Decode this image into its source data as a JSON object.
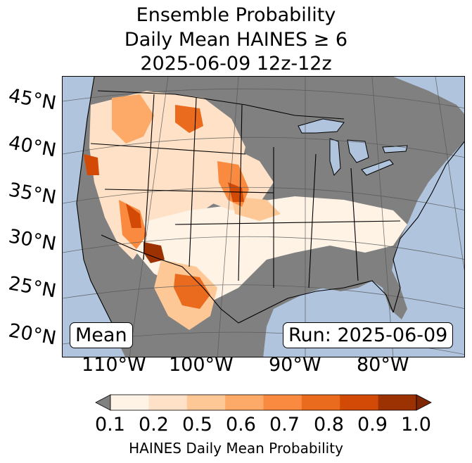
{
  "title": {
    "line1": "Ensemble Probability",
    "line2": "Daily Mean HAINES ≥ 6",
    "line3": "2025-06-09 12z-12z"
  },
  "map": {
    "lat_labels": [
      "45°N",
      "40°N",
      "35°N",
      "30°N",
      "25°N",
      "20°N"
    ],
    "lon_labels": [
      "110°W",
      "100°W",
      "90°W",
      "80°W"
    ],
    "inset_left": "Mean",
    "inset_right": "Run: 2025-06-09",
    "colors": {
      "ocean": "#b0c4de",
      "below_threshold": "#808080",
      "gridline": "#555555"
    }
  },
  "colorbar": {
    "tick_labels": [
      "0.1",
      "0.2",
      "0.5",
      "0.6",
      "0.7",
      "0.8",
      "0.9",
      "1.0"
    ],
    "colors": [
      "#fff3e6",
      "#fee1c6",
      "#fdc896",
      "#fdaa68",
      "#f98a3f",
      "#eb6b1e",
      "#d34a06",
      "#9c3102"
    ],
    "under_color": "#808080",
    "over_color": "#7f2704",
    "label": "HAINES Daily Mean Probability"
  }
}
